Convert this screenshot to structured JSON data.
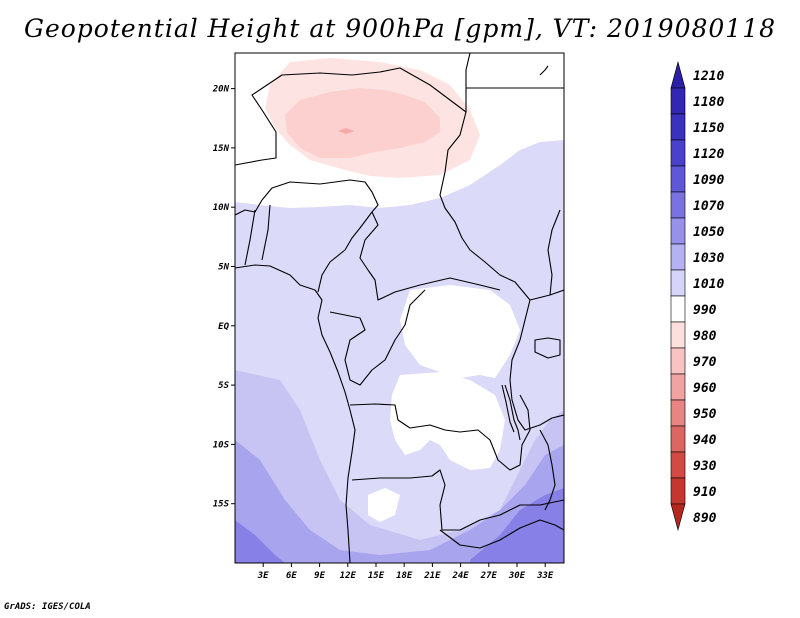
{
  "title": "Geopotential Height at 900hPa [gpm], VT: 2019080118",
  "credit": "GrADS: IGES/COLA",
  "map": {
    "lon_range": [
      0,
      35
    ],
    "lat_range": [
      -20,
      23
    ],
    "lat_ticks": [
      {
        "value": 20,
        "label": "20N"
      },
      {
        "value": 15,
        "label": "15N"
      },
      {
        "value": 10,
        "label": "10N"
      },
      {
        "value": 5,
        "label": "5N"
      },
      {
        "value": 0,
        "label": "EQ"
      },
      {
        "value": -5,
        "label": "5S"
      },
      {
        "value": -10,
        "label": "10S"
      },
      {
        "value": -15,
        "label": "15S"
      }
    ],
    "lon_ticks": [
      {
        "value": 3,
        "label": "3E"
      },
      {
        "value": 6,
        "label": "6E"
      },
      {
        "value": 9,
        "label": "9E"
      },
      {
        "value": 12,
        "label": "12E"
      },
      {
        "value": 15,
        "label": "15E"
      },
      {
        "value": 18,
        "label": "18E"
      },
      {
        "value": 21,
        "label": "21E"
      },
      {
        "value": 24,
        "label": "24E"
      },
      {
        "value": 27,
        "label": "27E"
      },
      {
        "value": 30,
        "label": "30E"
      },
      {
        "value": 33,
        "label": "33E"
      }
    ]
  },
  "colorbar": {
    "levels": [
      {
        "label": "1210",
        "color": "#2b1fa8"
      },
      {
        "label": "1180",
        "color": "#3226b3"
      },
      {
        "label": "1150",
        "color": "#3b31bf"
      },
      {
        "label": "1120",
        "color": "#4a40cc"
      },
      {
        "label": "1090",
        "color": "#5f57d8"
      },
      {
        "label": "1070",
        "color": "#7a72e2"
      },
      {
        "label": "1050",
        "color": "#9791ec"
      },
      {
        "label": "1030",
        "color": "#b5b1f3"
      },
      {
        "label": "1010",
        "color": "#d6d4f9"
      },
      {
        "label": "990",
        "color": "#ffffff"
      },
      {
        "label": "980",
        "color": "#fde0de"
      },
      {
        "label": "970",
        "color": "#f7c4c1"
      },
      {
        "label": "960",
        "color": "#f0a3a0"
      },
      {
        "label": "950",
        "color": "#e88582"
      },
      {
        "label": "940",
        "color": "#de6662"
      },
      {
        "label": "930",
        "color": "#d34a44"
      },
      {
        "label": "910",
        "color": "#c53630"
      },
      {
        "label": "890",
        "color": "#b3271f"
      }
    ]
  },
  "field_colors": {
    "very_light_red": "#fde4e3",
    "light_red": "#fbd0cf",
    "mid_red": "#f6a9a7",
    "white": "#ffffff",
    "pale_blue": "#dcdaf9",
    "light_blue": "#c7c4f4",
    "mid_blue": "#a9a4ee",
    "deep_blue": "#8780e6"
  }
}
